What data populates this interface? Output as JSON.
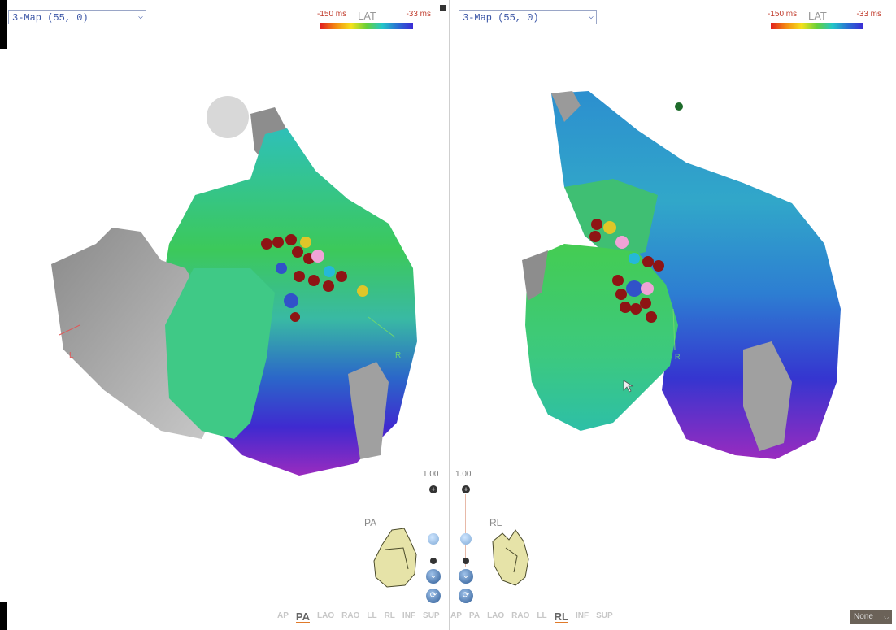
{
  "left_panel": {
    "map_select_value": "3-Map (55, 0)",
    "legend": {
      "min_label": "-150 ms",
      "title": "LAT",
      "max_label": "-33 ms"
    },
    "zoom_value": "1.00",
    "orientation_label": "PA",
    "marker_labels": {
      "left": "L",
      "right": "R"
    },
    "views": [
      {
        "label": "AP",
        "active": false
      },
      {
        "label": "PA",
        "active": true
      },
      {
        "label": "LAO",
        "active": false
      },
      {
        "label": "RAO",
        "active": false
      },
      {
        "label": "LL",
        "active": false
      },
      {
        "label": "RL",
        "active": false
      },
      {
        "label": "INF",
        "active": false
      },
      {
        "label": "SUP",
        "active": false
      }
    ]
  },
  "right_panel": {
    "map_select_value": "3-Map (55, 0)",
    "legend": {
      "min_label": "-150 ms",
      "title": "LAT",
      "max_label": "-33 ms"
    },
    "zoom_value": "1.00",
    "orientation_label": "RL",
    "marker_labels": {
      "right": "R"
    },
    "views": [
      {
        "label": "AP",
        "active": false
      },
      {
        "label": "PA",
        "active": false
      },
      {
        "label": "LAO",
        "active": false
      },
      {
        "label": "RAO",
        "active": false
      },
      {
        "label": "LL",
        "active": false
      },
      {
        "label": "RL",
        "active": true
      },
      {
        "label": "INF",
        "active": false
      },
      {
        "label": "SUP",
        "active": false
      }
    ]
  },
  "bottom_right_select_value": "None",
  "colors": {
    "map_select_text": "#3a55a6",
    "legend_label": "#c03b2b",
    "active_view_underline": "#e07a2a",
    "ablation_marker": "#8e1414",
    "gray_tissue": "#9a9a9a"
  }
}
